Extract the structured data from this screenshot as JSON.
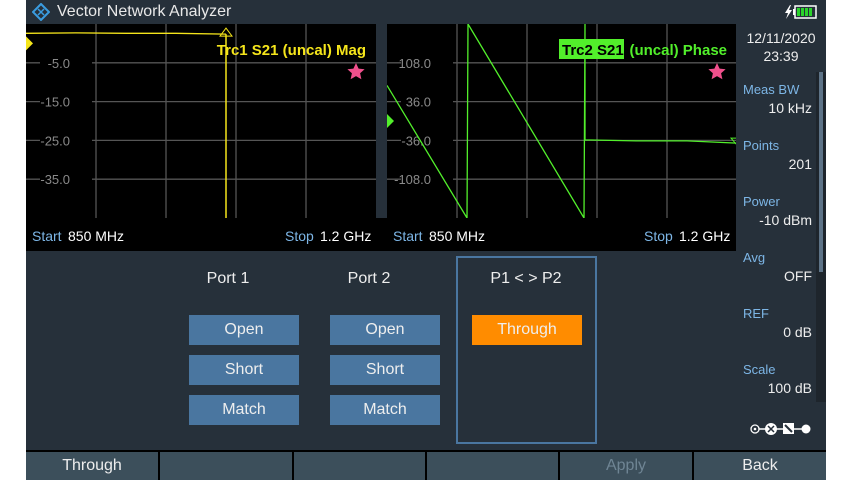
{
  "app": {
    "title": "Vector Network Analyzer",
    "battery_color": "#2bd42b"
  },
  "status": {
    "date": "12/11/2020",
    "time": "23:39"
  },
  "trace1": {
    "title": "Trc1  S21  (uncal) Mag",
    "color": "#f5e51b",
    "y_ticks": [
      "-5.0",
      "-15.0",
      "-25.0",
      "-35.0"
    ],
    "ylim": [
      -45,
      5
    ],
    "ref": 0,
    "points": [
      [
        850,
        2.6
      ],
      [
        900,
        2.7
      ],
      [
        950,
        2.6
      ],
      [
        1000,
        2.6
      ],
      [
        1050,
        2.4
      ]
    ],
    "marker_freq": 1050,
    "start_label": "Start",
    "start": "850 MHz",
    "stop_label": "Stop",
    "stop": "1.2 GHz"
  },
  "trace2": {
    "title_badge": "Trc2  S21",
    "title_rest": " (uncal) Phase",
    "color": "#52ef2b",
    "y_ticks": [
      "108.0",
      "36.0",
      "-36.0",
      "-108.0"
    ],
    "ylim": [
      -180,
      180
    ],
    "ref": 0,
    "points": [
      [
        850,
        66
      ],
      [
        930,
        -180
      ],
      [
        931,
        180
      ],
      [
        1047,
        -180
      ],
      [
        1048,
        180
      ],
      [
        1048,
        -35
      ],
      [
        1100,
        -37
      ],
      [
        1150,
        -37
      ],
      [
        1200,
        -41
      ]
    ],
    "start_label": "Start",
    "start": "850 MHz",
    "stop_label": "Stop",
    "stop": "1.2 GHz"
  },
  "xlim": [
    850,
    1200
  ],
  "star_color": "#f0508c",
  "calibration": {
    "port1": {
      "label": "Port 1",
      "buttons": [
        "Open",
        "Short",
        "Match"
      ]
    },
    "port2": {
      "label": "Port 2",
      "buttons": [
        "Open",
        "Short",
        "Match"
      ]
    },
    "p1p2": {
      "label": "P1 < > P2",
      "button": "Through",
      "button_color": "#ff8c00"
    }
  },
  "sidebar": [
    {
      "label": "Meas BW",
      "value": "10 kHz"
    },
    {
      "label": "Points",
      "value": "201"
    },
    {
      "label": "Power",
      "value": "-10 dBm"
    },
    {
      "label": "Avg",
      "value": "OFF"
    },
    {
      "label": "REF",
      "value": "0 dB"
    },
    {
      "label": "Scale",
      "value": "100 dB"
    }
  ],
  "softkeys": [
    "Through",
    "",
    "",
    "",
    "Apply",
    "Back"
  ]
}
